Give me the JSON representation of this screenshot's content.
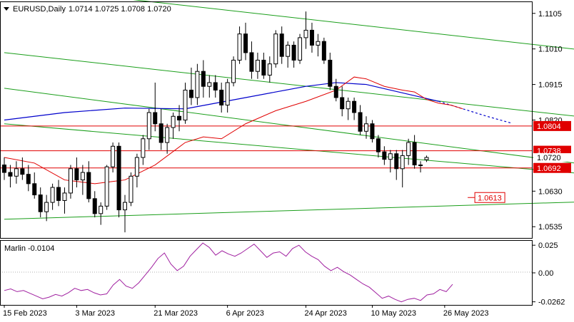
{
  "header": {
    "symbol_label": "EURUSD,Daily",
    "ohlc_label": "1.0714 1.0725 1.0708 1.0720"
  },
  "indicator": {
    "label": "Marlin -0.0104"
  },
  "colors": {
    "candle": "#000000",
    "ma_blue": "#0000cc",
    "ma_red": "#e00000",
    "channel": "#1a9e1a",
    "level": "#e00000",
    "marlin": "#a020a0",
    "frame": "#000000",
    "grid_text": "#000000"
  },
  "chart_data": [
    {
      "type": "candlestick",
      "symbol": "EURUSD",
      "timeframe": "Daily",
      "ylim": [
        1.0505,
        1.1135
      ],
      "price_ticks": [
        "1.1105",
        "1.1010",
        "1.0915",
        "1.0820",
        "1.0630",
        "1.0535"
      ],
      "x_ticks": [
        "15 Feb 2023",
        "3 Mar 2023",
        "21 Mar 2023",
        "6 Apr 2023",
        "24 Apr 2023",
        "10 May 2023",
        "26 May 2023"
      ],
      "price_labels": [
        {
          "text": "1.0804",
          "value": 1.0804,
          "style": "red-box"
        },
        {
          "text": "1.0738",
          "value": 1.0738,
          "style": "red-box"
        },
        {
          "text": "1.0720",
          "value": 1.072,
          "style": "current"
        },
        {
          "text": "1.0692",
          "value": 1.0692,
          "style": "red-box"
        }
      ],
      "annotations": [
        {
          "text": "1.0613",
          "value": 1.0613,
          "style": "red-outline"
        }
      ],
      "horizontal_levels": [
        1.0804,
        1.0738,
        1.0692
      ],
      "candles": [
        [
          1.07,
          1.072,
          1.066,
          1.068
        ],
        [
          1.068,
          1.07,
          1.064,
          1.067
        ],
        [
          1.067,
          1.071,
          1.065,
          1.069
        ],
        [
          1.069,
          1.072,
          1.066,
          1.0675
        ],
        [
          1.0675,
          1.07,
          1.063,
          1.065
        ],
        [
          1.065,
          1.068,
          1.061,
          1.062
        ],
        [
          1.062,
          1.064,
          1.056,
          1.0575
        ],
        [
          1.0575,
          1.062,
          1.055,
          1.06
        ],
        [
          1.06,
          1.065,
          1.058,
          1.064
        ],
        [
          1.064,
          1.066,
          1.059,
          1.0605
        ],
        [
          1.0605,
          1.064,
          1.057,
          1.0625
        ],
        [
          1.0625,
          1.07,
          1.061,
          1.069
        ],
        [
          1.069,
          1.072,
          1.064,
          1.066
        ],
        [
          1.066,
          1.07,
          1.062,
          1.068
        ],
        [
          1.068,
          1.071,
          1.06,
          1.061
        ],
        [
          1.061,
          1.063,
          1.056,
          1.057
        ],
        [
          1.057,
          1.06,
          1.054,
          1.059
        ],
        [
          1.059,
          1.07,
          1.058,
          1.0695
        ],
        [
          1.0695,
          1.076,
          1.068,
          1.075
        ],
        [
          1.075,
          1.076,
          1.056,
          1.058
        ],
        [
          1.058,
          1.062,
          1.052,
          1.06
        ],
        [
          1.06,
          1.068,
          1.059,
          1.067
        ],
        [
          1.067,
          1.073,
          1.064,
          1.072
        ],
        [
          1.072,
          1.078,
          1.07,
          1.077
        ],
        [
          1.077,
          1.085,
          1.074,
          1.084
        ],
        [
          1.084,
          1.092,
          1.079,
          1.081
        ],
        [
          1.081,
          1.085,
          1.074,
          1.076
        ],
        [
          1.076,
          1.081,
          1.073,
          1.08
        ],
        [
          1.08,
          1.084,
          1.077,
          1.083
        ],
        [
          1.083,
          1.086,
          1.079,
          1.082
        ],
        [
          1.082,
          1.092,
          1.081,
          1.09
        ],
        [
          1.09,
          1.096,
          1.086,
          1.088
        ],
        [
          1.088,
          1.097,
          1.086,
          1.095
        ],
        [
          1.095,
          1.098,
          1.088,
          1.091
        ],
        [
          1.091,
          1.094,
          1.088,
          1.092
        ],
        [
          1.092,
          1.094,
          1.088,
          1.09
        ],
        [
          1.09,
          1.092,
          1.084,
          1.086
        ],
        [
          1.086,
          1.093,
          1.084,
          1.092
        ],
        [
          1.092,
          1.099,
          1.091,
          1.098
        ],
        [
          1.098,
          1.107,
          1.097,
          1.105
        ],
        [
          1.105,
          1.108,
          1.098,
          1.1
        ],
        [
          1.1,
          1.103,
          1.093,
          1.095
        ],
        [
          1.095,
          1.1,
          1.093,
          1.098
        ],
        [
          1.098,
          1.1,
          1.093,
          1.094
        ],
        [
          1.094,
          1.099,
          1.092,
          1.097
        ],
        [
          1.097,
          1.106,
          1.096,
          1.105
        ],
        [
          1.105,
          1.107,
          1.097,
          1.099
        ],
        [
          1.099,
          1.103,
          1.096,
          1.102
        ],
        [
          1.102,
          1.103,
          1.096,
          1.098
        ],
        [
          1.098,
          1.105,
          1.097,
          1.104
        ],
        [
          1.104,
          1.111,
          1.101,
          1.106
        ],
        [
          1.106,
          1.108,
          1.1,
          1.102
        ],
        [
          1.102,
          1.105,
          1.099,
          1.103
        ],
        [
          1.103,
          1.104,
          1.097,
          1.098
        ],
        [
          1.098,
          1.1,
          1.09,
          1.091
        ],
        [
          1.091,
          1.093,
          1.087,
          1.088
        ],
        [
          1.088,
          1.091,
          1.083,
          1.085
        ],
        [
          1.085,
          1.088,
          1.082,
          1.087
        ],
        [
          1.087,
          1.088,
          1.082,
          1.084
        ],
        [
          1.084,
          1.086,
          1.078,
          1.079
        ],
        [
          1.079,
          1.083,
          1.077,
          1.081
        ],
        [
          1.081,
          1.082,
          1.076,
          1.077
        ],
        [
          1.077,
          1.078,
          1.072,
          1.0735
        ],
        [
          1.0735,
          1.075,
          1.07,
          1.0715
        ],
        [
          1.0715,
          1.074,
          1.068,
          1.073
        ],
        [
          1.073,
          1.074,
          1.066,
          1.069
        ],
        [
          1.069,
          1.074,
          1.064,
          1.0725
        ],
        [
          1.0725,
          1.077,
          1.07,
          1.076
        ],
        [
          1.076,
          1.078,
          1.069,
          1.07
        ],
        [
          1.07,
          1.071,
          1.068,
          1.07
        ],
        [
          1.0714,
          1.0725,
          1.0708,
          1.072
        ]
      ],
      "overlays": [
        {
          "name": "MA blue",
          "color": "#0000cc",
          "style": "solid-then-dashed",
          "points": [
            [
              0,
              1.082
            ],
            [
              10,
              1.084
            ],
            [
              20,
              1.0852
            ],
            [
              30,
              1.085
            ],
            [
              40,
              1.088
            ],
            [
              45,
              1.0895
            ],
            [
              50,
              1.091
            ],
            [
              55,
              1.092
            ],
            [
              60,
              1.0915
            ],
            [
              64,
              1.09
            ],
            [
              68,
              1.0885
            ],
            [
              72,
              1.087
            ],
            [
              76,
              1.085
            ],
            [
              80,
              1.083
            ],
            [
              84,
              1.0812
            ]
          ]
        },
        {
          "name": "MA red",
          "color": "#e00000",
          "style": "solid",
          "points": [
            [
              0,
              1.072
            ],
            [
              5,
              1.0705
            ],
            [
              10,
              1.066
            ],
            [
              15,
              1.065
            ],
            [
              20,
              1.066
            ],
            [
              25,
              1.07
            ],
            [
              30,
              1.076
            ],
            [
              33,
              1.0775
            ],
            [
              36,
              1.077
            ],
            [
              40,
              1.081
            ],
            [
              45,
              1.0845
            ],
            [
              50,
              1.087
            ],
            [
              55,
              1.09
            ],
            [
              58,
              1.0935
            ],
            [
              60,
              1.093
            ],
            [
              63,
              1.091
            ],
            [
              66,
              1.09
            ],
            [
              68,
              1.0895
            ],
            [
              70,
              1.0875
            ],
            [
              72,
              1.0865
            ],
            [
              74,
              1.086
            ],
            [
              76,
              1.085
            ]
          ]
        }
      ],
      "channel_lines": [
        {
          "from": [
            0,
            1.118
          ],
          "to": [
            97,
            1.1005
          ]
        },
        {
          "from": [
            0,
            1.1
          ],
          "to": [
            97,
            1.0826
          ]
        },
        {
          "from": [
            0,
            1.0905
          ],
          "to": [
            97,
            1.07
          ]
        },
        {
          "from": [
            0,
            1.081
          ],
          "to": [
            97,
            1.0675
          ]
        },
        {
          "from": [
            0,
            1.0555
          ],
          "to": [
            97,
            1.0602
          ]
        }
      ]
    },
    {
      "type": "line",
      "name": "Marlin",
      "ylim": [
        -0.029,
        0.029
      ],
      "y_ticks": [
        "0.025",
        "0.00",
        "-0.0262"
      ],
      "values": [
        -0.016,
        -0.0145,
        -0.017,
        -0.016,
        -0.0185,
        -0.021,
        -0.0235,
        -0.022,
        -0.0195,
        -0.021,
        -0.018,
        -0.014,
        -0.016,
        -0.015,
        -0.018,
        -0.02,
        -0.019,
        -0.011,
        -0.006,
        -0.012,
        -0.014,
        -0.009,
        -0.002,
        0.005,
        0.013,
        0.018,
        0.008,
        0.002,
        0.006,
        0.015,
        0.021,
        0.027,
        0.023,
        0.016,
        0.02,
        0.017,
        0.015,
        0.018,
        0.022,
        0.026,
        0.02,
        0.014,
        0.018,
        0.019,
        0.015,
        0.022,
        0.025,
        0.019,
        0.015,
        0.012,
        0.006,
        0.002,
        0.005,
        0.001,
        -0.002,
        -0.006,
        -0.01,
        -0.013,
        -0.018,
        -0.023,
        -0.021,
        -0.024,
        -0.0262,
        -0.024,
        -0.023,
        -0.025,
        -0.02,
        -0.019,
        -0.015,
        -0.017,
        -0.0104
      ]
    }
  ]
}
